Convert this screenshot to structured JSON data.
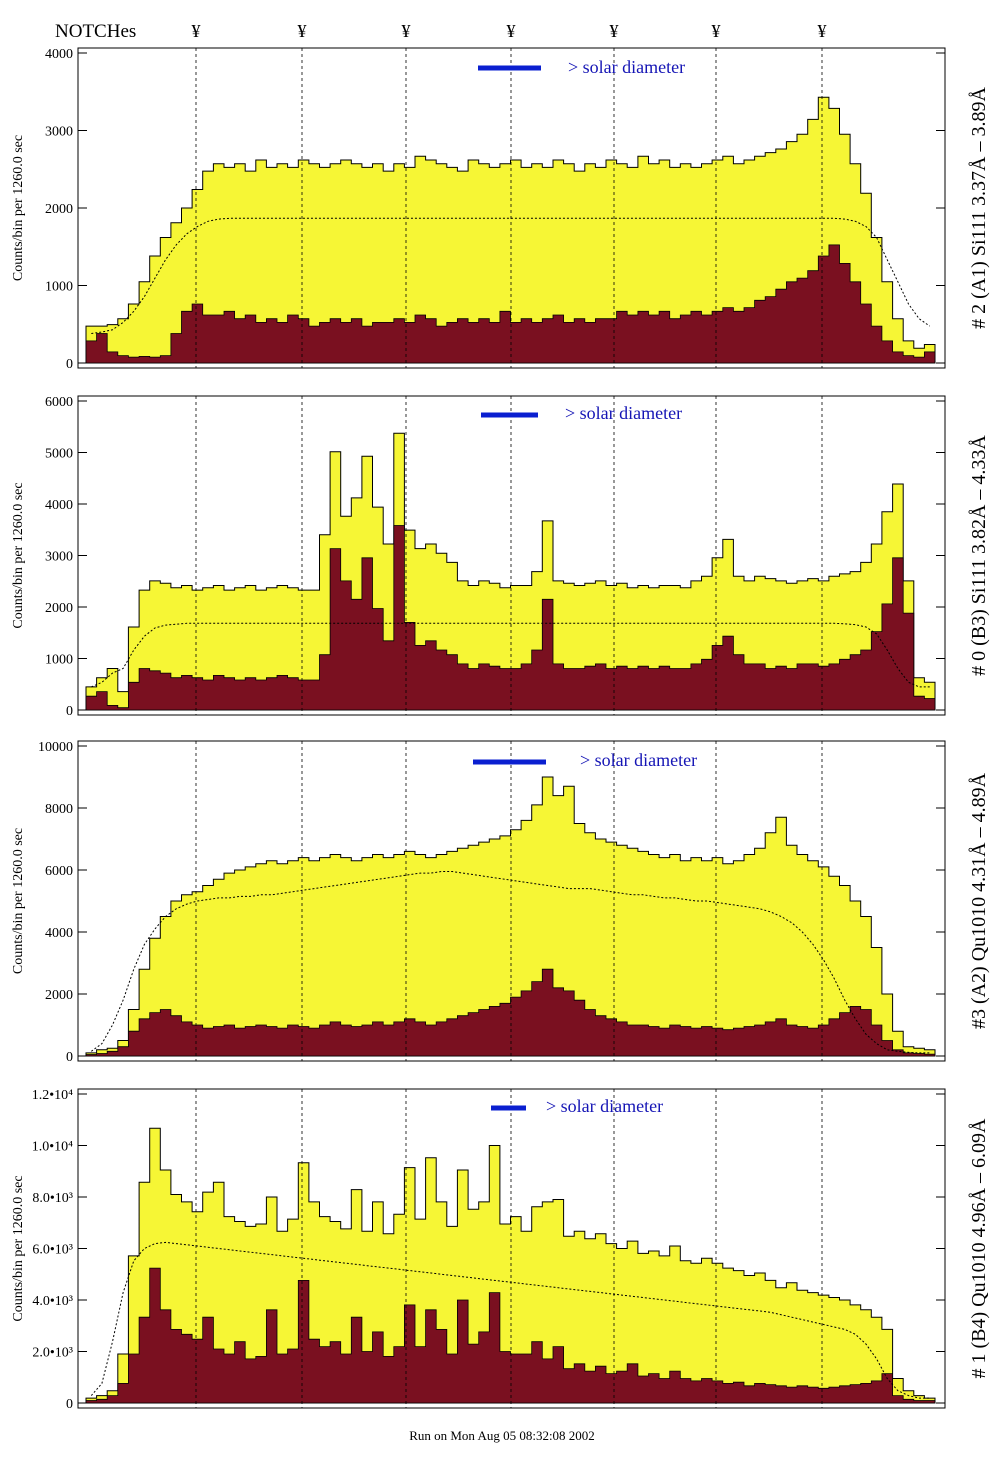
{
  "header": {
    "notches_label": "NOTCHes",
    "notch_symbol": "¥"
  },
  "footer": {
    "run_text": "Run on Mon Aug 05 08:32:08 2002"
  },
  "colors": {
    "fill_total": "#f6f635",
    "fill_low": "#7a1020",
    "solar_bar": "#0a1fd0",
    "solar_text": "#1515b5"
  },
  "chart_data": [
    {
      "type": "area",
      "panel_label": "# 2 (A1) Si111  3.37Å – 3.89Å",
      "ylabel": "Counts/bin per   1260.0 sec",
      "ytick_labels": [
        "0",
        "1000",
        "2000",
        "3000",
        "4000"
      ],
      "ylim": [
        0,
        4200
      ],
      "annotation": "> solar diameter",
      "series": [
        {
          "values": [
            500,
            500,
            520,
            600,
            800,
            1100,
            1450,
            1700,
            1900,
            2100,
            2350,
            2600,
            2700,
            2650,
            2700,
            2600,
            2750,
            2650,
            2700,
            2650,
            2750,
            2700,
            2650,
            2700,
            2750,
            2700,
            2650,
            2700,
            2600,
            2700,
            2650,
            2800,
            2750,
            2700,
            2650,
            2600,
            2750,
            2700,
            2650,
            2700,
            2750,
            2650,
            2700,
            2650,
            2750,
            2700,
            2600,
            2700,
            2650,
            2750,
            2700,
            2650,
            2800,
            2700,
            2750,
            2650,
            2700,
            2650,
            2700,
            2750,
            2800,
            2700,
            2750,
            2800,
            2850,
            2900,
            3000,
            3100,
            3300,
            3600,
            3450,
            3100,
            2700,
            2300,
            1700,
            1100,
            600,
            300,
            200,
            250
          ]
        },
        {
          "values": [
            300,
            400,
            150,
            100,
            80,
            90,
            80,
            100,
            400,
            700,
            800,
            650,
            650,
            700,
            600,
            650,
            550,
            600,
            550,
            650,
            600,
            500,
            550,
            600,
            550,
            600,
            500,
            550,
            550,
            600,
            550,
            650,
            600,
            500,
            550,
            600,
            550,
            600,
            550,
            700,
            550,
            600,
            550,
            600,
            650,
            550,
            600,
            550,
            600,
            600,
            700,
            650,
            700,
            650,
            700,
            600,
            650,
            700,
            650,
            700,
            750,
            700,
            750,
            850,
            900,
            1000,
            1100,
            1150,
            1250,
            1450,
            1600,
            1350,
            1100,
            800,
            500,
            300,
            150,
            100,
            80,
            150
          ]
        },
        {
          "values": [
            400,
            420,
            450,
            550,
            700,
            900,
            1150,
            1400,
            1600,
            1750,
            1850,
            1920,
            1950,
            1960,
            1960,
            1960,
            1960,
            1960,
            1960,
            1960,
            1960,
            1960,
            1960,
            1960,
            1960,
            1960,
            1960,
            1960,
            1960,
            1960,
            1960,
            1960,
            1960,
            1960,
            1960,
            1960,
            1960,
            1960,
            1960,
            1960,
            1960,
            1960,
            1960,
            1960,
            1960,
            1960,
            1960,
            1960,
            1960,
            1960,
            1960,
            1960,
            1960,
            1960,
            1960,
            1960,
            1960,
            1960,
            1960,
            1960,
            1960,
            1960,
            1960,
            1960,
            1960,
            1960,
            1960,
            1960,
            1960,
            1960,
            1960,
            1950,
            1920,
            1850,
            1700,
            1400,
            1100,
            800,
            600,
            500
          ]
        }
      ]
    },
    {
      "type": "area",
      "panel_label": "# 0 (B3) Si111  3.82Å – 4.33Å",
      "ylabel": "Counts/bin per   1260.0 sec",
      "ytick_labels": [
        "0",
        "1000",
        "2000",
        "3000",
        "4000",
        "5000",
        "6000"
      ],
      "ylim": [
        0,
        6700
      ],
      "annotation": "> solar diameter",
      "series": [
        {
          "values": [
            500,
            700,
            900,
            400,
            1800,
            2600,
            2800,
            2750,
            2650,
            2700,
            2600,
            2650,
            2700,
            2600,
            2650,
            2700,
            2600,
            2650,
            2700,
            2650,
            2600,
            2600,
            3800,
            5600,
            4200,
            4600,
            5500,
            4400,
            3600,
            6000,
            3900,
            3500,
            3600,
            3400,
            3200,
            2800,
            2700,
            2800,
            2750,
            2650,
            2700,
            2700,
            3000,
            4100,
            2800,
            2750,
            2700,
            2750,
            2800,
            2700,
            2750,
            2650,
            2700,
            2650,
            2700,
            2700,
            2650,
            2800,
            2900,
            3300,
            3700,
            2900,
            2800,
            2900,
            2850,
            2800,
            2750,
            2800,
            2850,
            2800,
            2900,
            2950,
            3000,
            3200,
            3600,
            4300,
            4900,
            2800,
            700,
            600
          ]
        },
        {
          "values": [
            300,
            400,
            100,
            50,
            600,
            900,
            850,
            800,
            700,
            750,
            700,
            650,
            750,
            700,
            650,
            700,
            650,
            700,
            750,
            700,
            650,
            650,
            1200,
            3500,
            2800,
            2400,
            3300,
            2200,
            1500,
            4000,
            1900,
            1400,
            1500,
            1300,
            1200,
            1000,
            900,
            1000,
            950,
            900,
            900,
            1000,
            1300,
            2400,
            1000,
            900,
            900,
            950,
            1000,
            900,
            950,
            900,
            950,
            900,
            950,
            900,
            900,
            1000,
            1100,
            1400,
            1600,
            1200,
            1000,
            1000,
            900,
            950,
            900,
            1000,
            1000,
            950,
            1000,
            1100,
            1200,
            1300,
            1700,
            2300,
            3300,
            2100,
            300,
            250
          ]
        },
        {
          "values": [
            500,
            600,
            800,
            900,
            1300,
            1600,
            1780,
            1840,
            1860,
            1880,
            1880,
            1880,
            1880,
            1880,
            1880,
            1880,
            1880,
            1880,
            1880,
            1880,
            1880,
            1880,
            1880,
            1880,
            1880,
            1880,
            1880,
            1880,
            1880,
            1880,
            1880,
            1880,
            1880,
            1880,
            1880,
            1880,
            1880,
            1880,
            1880,
            1880,
            1880,
            1880,
            1880,
            1880,
            1880,
            1880,
            1880,
            1880,
            1880,
            1880,
            1880,
            1880,
            1880,
            1880,
            1880,
            1880,
            1880,
            1880,
            1880,
            1880,
            1880,
            1880,
            1880,
            1880,
            1880,
            1880,
            1880,
            1880,
            1880,
            1880,
            1880,
            1870,
            1850,
            1800,
            1650,
            1300,
            900,
            600,
            500,
            500
          ]
        }
      ]
    },
    {
      "type": "area",
      "panel_label": "#3 (A2) Qu1010  4.31Å – 4.89Å",
      "ylabel": "Counts/bin per   1260.0 sec",
      "ytick_labels": [
        "0",
        "2000",
        "4000",
        "6000",
        "8000",
        "10000"
      ],
      "ylim": [
        0,
        10000
      ],
      "annotation": "> solar diameter",
      "series": [
        {
          "values": [
            100,
            200,
            250,
            500,
            1500,
            2800,
            3800,
            4500,
            5000,
            5200,
            5300,
            5500,
            5700,
            5900,
            6000,
            6100,
            6200,
            6300,
            6200,
            6300,
            6400,
            6300,
            6400,
            6500,
            6400,
            6300,
            6400,
            6500,
            6400,
            6500,
            6600,
            6500,
            6400,
            6500,
            6600,
            6700,
            6800,
            6900,
            7000,
            7100,
            7300,
            7600,
            8100,
            9000,
            8400,
            8700,
            7500,
            7200,
            7000,
            6900,
            6800,
            6700,
            6600,
            6500,
            6400,
            6500,
            6300,
            6400,
            6300,
            6400,
            6200,
            6300,
            6500,
            6700,
            7200,
            7700,
            6800,
            6500,
            6300,
            6100,
            5800,
            5500,
            5000,
            4500,
            3500,
            2000,
            800,
            300,
            250,
            200
          ]
        },
        {
          "values": [
            50,
            80,
            150,
            300,
            800,
            1200,
            1400,
            1500,
            1300,
            1100,
            1000,
            900,
            950,
            1000,
            900,
            950,
            1000,
            950,
            900,
            1000,
            950,
            900,
            1000,
            1100,
            1000,
            950,
            1000,
            1100,
            1000,
            1100,
            1200,
            1100,
            1000,
            1100,
            1200,
            1300,
            1400,
            1500,
            1600,
            1700,
            1900,
            2100,
            2400,
            2800,
            2200,
            2100,
            1800,
            1500,
            1300,
            1200,
            1100,
            1000,
            1000,
            950,
            900,
            1000,
            950,
            900,
            950,
            900,
            850,
            900,
            950,
            1000,
            1100,
            1200,
            1000,
            950,
            900,
            1000,
            1200,
            1400,
            1600,
            1500,
            1000,
            500,
            200,
            100,
            80,
            60
          ]
        },
        {
          "values": [
            150,
            400,
            1000,
            1800,
            2800,
            3600,
            4100,
            4500,
            4750,
            4900,
            5000,
            5050,
            5100,
            5100,
            5150,
            5150,
            5200,
            5200,
            5250,
            5300,
            5350,
            5400,
            5450,
            5500,
            5550,
            5600,
            5650,
            5700,
            5750,
            5800,
            5850,
            5900,
            5900,
            5950,
            5950,
            5900,
            5850,
            5800,
            5750,
            5700,
            5650,
            5600,
            5550,
            5500,
            5450,
            5400,
            5400,
            5400,
            5350,
            5300,
            5250,
            5200,
            5200,
            5150,
            5100,
            5100,
            5050,
            5000,
            5000,
            4950,
            4900,
            4850,
            4800,
            4750,
            4650,
            4500,
            4300,
            4000,
            3600,
            3100,
            2500,
            1800,
            1200,
            700,
            400,
            200,
            150,
            120,
            100,
            100
          ]
        }
      ]
    },
    {
      "type": "area",
      "panel_label": "# 1 (B4) Qu1010 4.96Å – 6.09Å",
      "ylabel": "Counts/bin per   1260.0 sec",
      "ytick_labels": [
        "0",
        "2.0•10³",
        "4.0•10³",
        "6.0•10³",
        "8.0•10³",
        "1.0•10⁴",
        "1.2•10⁴"
      ],
      "ylim": [
        0,
        12600
      ],
      "annotation": "> solar diameter",
      "series": [
        {
          "values": [
            200,
            300,
            500,
            2000,
            6000,
            9000,
            11200,
            9500,
            8500,
            8200,
            7800,
            8600,
            9000,
            7600,
            7400,
            7200,
            7300,
            8400,
            7000,
            7500,
            9800,
            8200,
            7600,
            7400,
            7100,
            8700,
            7000,
            8200,
            6900,
            7700,
            9600,
            7500,
            10000,
            8200,
            7200,
            9500,
            7900,
            8200,
            10500,
            7300,
            7600,
            7000,
            8000,
            8200,
            8300,
            6800,
            7000,
            6700,
            6900,
            6500,
            6300,
            6600,
            6100,
            6200,
            6000,
            6400,
            5800,
            5700,
            5900,
            5700,
            5500,
            5400,
            5200,
            5300,
            5000,
            4700,
            4900,
            4600,
            4500,
            4400,
            4300,
            4200,
            4000,
            3800,
            3500,
            3000,
            1000,
            500,
            300,
            200
          ]
        },
        {
          "values": [
            100,
            150,
            300,
            800,
            2000,
            3500,
            5500,
            3800,
            3000,
            2800,
            2600,
            3500,
            2200,
            2000,
            2500,
            1800,
            1900,
            3800,
            2000,
            2200,
            5000,
            2600,
            2300,
            2500,
            2000,
            3500,
            2100,
            2900,
            1900,
            2300,
            4000,
            2300,
            3800,
            3000,
            2000,
            4200,
            2400,
            2900,
            4500,
            2100,
            2000,
            2000,
            2500,
            1800,
            2300,
            1400,
            1600,
            1300,
            1500,
            1200,
            1300,
            1600,
            1100,
            1200,
            1000,
            1300,
            1000,
            900,
            1000,
            900,
            800,
            850,
            700,
            800,
            750,
            700,
            650,
            700,
            650,
            600,
            650,
            700,
            750,
            800,
            900,
            1200,
            300,
            150,
            100,
            100
          ]
        },
        {
          "values": [
            300,
            800,
            2500,
            4500,
            5800,
            6300,
            6500,
            6550,
            6500,
            6450,
            6400,
            6350,
            6300,
            6250,
            6200,
            6150,
            6100,
            6050,
            6000,
            5950,
            5900,
            5850,
            5800,
            5750,
            5700,
            5650,
            5600,
            5550,
            5500,
            5450,
            5400,
            5350,
            5300,
            5250,
            5200,
            5150,
            5100,
            5050,
            5000,
            4950,
            4900,
            4850,
            4800,
            4750,
            4700,
            4650,
            4600,
            4550,
            4500,
            4450,
            4400,
            4350,
            4300,
            4250,
            4200,
            4150,
            4100,
            4050,
            4000,
            3950,
            3900,
            3850,
            3800,
            3750,
            3700,
            3600,
            3500,
            3400,
            3300,
            3200,
            3100,
            3000,
            2800,
            2400,
            1800,
            1000,
            500,
            300,
            200,
            200
          ]
        }
      ]
    }
  ]
}
